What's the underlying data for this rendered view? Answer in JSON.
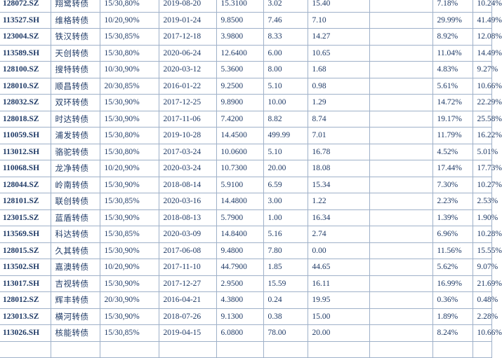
{
  "rows": [
    [
      "128072.SZ",
      "翔鹭转债",
      "15/30,80%",
      "2019-08-20",
      "15.3100",
      "3.02",
      "15.40",
      "",
      "7.18%",
      "10.24%"
    ],
    [
      "113527.SH",
      "维格转债",
      "10/20,90%",
      "2019-01-24",
      "9.8500",
      "7.46",
      "7.10",
      "",
      "29.99%",
      "41.49%"
    ],
    [
      "123004.SZ",
      "铁汉转债",
      "15/30,85%",
      "2017-12-18",
      "3.9800",
      "8.33",
      "14.27",
      "",
      "8.92%",
      "12.08%"
    ],
    [
      "113589.SH",
      "天创转债",
      "15/30,80%",
      "2020-06-24",
      "12.6400",
      "6.00",
      "10.65",
      "",
      "11.04%",
      "14.49%"
    ],
    [
      "128100.SZ",
      "搜特转债",
      "10/30,90%",
      "2020-03-12",
      "5.3600",
      "8.00",
      "1.68",
      "",
      "4.83%",
      "9.27%"
    ],
    [
      "128010.SZ",
      "顺昌转债",
      "20/30,85%",
      "2016-01-22",
      "9.2500",
      "5.10",
      "0.98",
      "",
      "5.61%",
      "10.66%"
    ],
    [
      "128032.SZ",
      "双环转债",
      "15/30,90%",
      "2017-12-25",
      "9.8900",
      "10.00",
      "1.29",
      "",
      "14.72%",
      "22.29%"
    ],
    [
      "128018.SZ",
      "时达转债",
      "15/30,90%",
      "2017-11-06",
      "7.4200",
      "8.82",
      "8.74",
      "",
      "19.17%",
      "25.58%"
    ],
    [
      "110059.SH",
      "浦发转债",
      "15/30,80%",
      "2019-10-28",
      "14.4500",
      "499.99",
      "7.01",
      "",
      "11.79%",
      "16.22%"
    ],
    [
      "113012.SH",
      "骆驼转债",
      "15/30,80%",
      "2017-03-24",
      "10.0600",
      "5.10",
      "16.78",
      "",
      "4.52%",
      "5.01%"
    ],
    [
      "110068.SH",
      "龙净转债",
      "10/20,90%",
      "2020-03-24",
      "10.7300",
      "20.00",
      "18.08",
      "",
      "17.44%",
      "17.73%"
    ],
    [
      "128044.SZ",
      "岭南转债",
      "15/30,90%",
      "2018-08-14",
      "5.9100",
      "6.59",
      "15.34",
      "",
      "7.30%",
      "10.27%"
    ],
    [
      "128101.SZ",
      "联创转债",
      "15/30,85%",
      "2020-03-16",
      "14.4800",
      "3.00",
      "1.22",
      "",
      "2.23%",
      "2.53%"
    ],
    [
      "123015.SZ",
      "蓝盾转债",
      "15/30,90%",
      "2018-08-13",
      "5.7900",
      "1.00",
      "16.34",
      "",
      "1.39%",
      "1.90%"
    ],
    [
      "113569.SH",
      "科达转债",
      "15/30,85%",
      "2020-03-09",
      "14.8400",
      "5.16",
      "2.74",
      "",
      "6.96%",
      "10.28%"
    ],
    [
      "128015.SZ",
      "久其转债",
      "15/30,90%",
      "2017-06-08",
      "9.4800",
      "7.80",
      "0.00",
      "",
      "11.56%",
      "15.55%"
    ],
    [
      "113502.SH",
      "嘉澳转债",
      "10/20,90%",
      "2017-11-10",
      "44.7900",
      "1.85",
      "44.65",
      "",
      "5.62%",
      "9.07%"
    ],
    [
      "113017.SH",
      "吉视转债",
      "15/30,90%",
      "2017-12-27",
      "2.9500",
      "15.59",
      "16.11",
      "",
      "16.99%",
      "21.69%"
    ],
    [
      "128012.SZ",
      "辉丰转债",
      "20/30,90%",
      "2016-04-21",
      "4.3800",
      "0.24",
      "19.95",
      "",
      "0.36%",
      "0.48%"
    ],
    [
      "123013.SZ",
      "横河转债",
      "15/30,90%",
      "2018-07-26",
      "9.1300",
      "0.38",
      "15.00",
      "",
      "1.89%",
      "2.28%"
    ],
    [
      "113026.SH",
      "核能转债",
      "15/30,85%",
      "2019-04-15",
      "6.0800",
      "78.00",
      "20.00",
      "",
      "8.24%",
      "10.66%"
    ],
    [
      "",
      "",
      "",
      "",
      "",
      "",
      "",
      "",
      "",
      ""
    ]
  ]
}
